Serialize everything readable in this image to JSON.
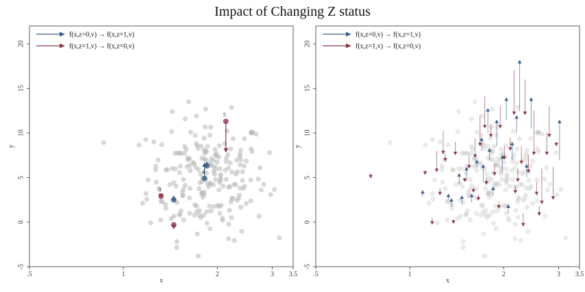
{
  "title": "Impact of Changing Z status",
  "colors": {
    "blue": "#3d5f87",
    "red": "#8b3a48",
    "grey": "#b8b8b8"
  },
  "legend": {
    "blue_label": "f(x,z=0,v) → f(x,z=1,v)",
    "red_label": "f(x,z=1,v) → f(x,z=0,v)"
  },
  "chart_data": [
    {
      "type": "scatter",
      "panel": "left",
      "xlabel": "x",
      "ylabel": "y",
      "xscale": "log",
      "xlim": [
        0.5,
        3.5
      ],
      "ylim": [
        -5,
        22
      ],
      "xticks": [
        {
          "v": 0.5,
          "t": ".5"
        },
        {
          "v": 1,
          "t": "1"
        },
        {
          "v": 2,
          "t": "2"
        },
        {
          "v": 3,
          "t": "3"
        },
        {
          "v": 3.5,
          "t": "3.5"
        }
      ],
      "yticks": [
        {
          "v": -5,
          "t": "-5"
        },
        {
          "v": 0,
          "t": "0"
        },
        {
          "v": 5,
          "t": "5"
        },
        {
          "v": 10,
          "t": "10"
        },
        {
          "v": 15,
          "t": "15"
        },
        {
          "v": 20,
          "t": "20"
        }
      ],
      "legend_position": "top-left",
      "highlight": [
        {
          "label": "3",
          "x": 1.32,
          "y0": 2.9,
          "y1": 2.7,
          "kind": "red"
        },
        {
          "label": "",
          "x": 1.45,
          "y0": 2.5,
          "y1": 3.0,
          "kind": "blue"
        },
        {
          "label": "4",
          "x": 1.82,
          "y0": 4.9,
          "y1": 6.7,
          "kind": "blue"
        },
        {
          "label": "",
          "x": 1.85,
          "y0": 6.3,
          "y1": 6.8,
          "kind": "blue"
        },
        {
          "label": "5",
          "x": 2.13,
          "y0": 11.3,
          "y1": 7.8,
          "kind": "red"
        },
        {
          "label": "",
          "x": 1.45,
          "y0": -0.3,
          "y1": -0.8,
          "kind": "red"
        }
      ]
    },
    {
      "type": "scatter",
      "panel": "right",
      "xlabel": "x",
      "ylabel": "y",
      "xscale": "log",
      "xlim": [
        0.5,
        3.5
      ],
      "ylim": [
        -5,
        22
      ],
      "xticks": [
        {
          "v": 0.5,
          "t": ".5"
        },
        {
          "v": 1,
          "t": "1"
        },
        {
          "v": 2,
          "t": "2"
        },
        {
          "v": 3,
          "t": "3"
        },
        {
          "v": 3.5,
          "t": "3.5"
        }
      ],
      "yticks": [
        {
          "v": -5,
          "t": "-5"
        },
        {
          "v": 0,
          "t": "0"
        },
        {
          "v": 5,
          "t": "5"
        },
        {
          "v": 10,
          "t": "10"
        },
        {
          "v": 15,
          "t": "15"
        },
        {
          "v": 20,
          "t": "20"
        }
      ],
      "legend_position": "top-left",
      "arrows": [
        {
          "x": 0.75,
          "y0": 5.5,
          "y1": 4.9,
          "kind": "red"
        },
        {
          "x": 1.1,
          "y0": 2.9,
          "y1": 3.6,
          "kind": "blue"
        },
        {
          "x": 1.12,
          "y0": 5.8,
          "y1": 5.3,
          "kind": "red"
        },
        {
          "x": 1.18,
          "y0": 0.5,
          "y1": -0.3,
          "kind": "red"
        },
        {
          "x": 1.22,
          "y0": 8.0,
          "y1": 5.6,
          "kind": "red"
        },
        {
          "x": 1.25,
          "y0": 3.8,
          "y1": 3.0,
          "kind": "red"
        },
        {
          "x": 1.28,
          "y0": 10.2,
          "y1": 7.6,
          "kind": "red"
        },
        {
          "x": 1.3,
          "y0": 7.7,
          "y1": 6.8,
          "kind": "red"
        },
        {
          "x": 1.33,
          "y0": 2.5,
          "y1": 3.2,
          "kind": "blue"
        },
        {
          "x": 1.36,
          "y0": 1.7,
          "y1": 2.7,
          "kind": "blue"
        },
        {
          "x": 1.38,
          "y0": 0.3,
          "y1": -0.2,
          "kind": "red"
        },
        {
          "x": 1.4,
          "y0": 9.0,
          "y1": 7.5,
          "kind": "red"
        },
        {
          "x": 1.44,
          "y0": 4.2,
          "y1": 5.5,
          "kind": "blue"
        },
        {
          "x": 1.47,
          "y0": 2.0,
          "y1": 3.0,
          "kind": "blue"
        },
        {
          "x": 1.5,
          "y0": 5.0,
          "y1": 4.5,
          "kind": "red"
        },
        {
          "x": 1.52,
          "y0": 4.6,
          "y1": 6.2,
          "kind": "blue"
        },
        {
          "x": 1.55,
          "y0": 7.5,
          "y1": 6.0,
          "kind": "red"
        },
        {
          "x": 1.58,
          "y0": 2.2,
          "y1": 3.2,
          "kind": "blue"
        },
        {
          "x": 1.6,
          "y0": 4.0,
          "y1": 3.3,
          "kind": "red"
        },
        {
          "x": 1.62,
          "y0": 9.4,
          "y1": 7.2,
          "kind": "red"
        },
        {
          "x": 1.64,
          "y0": 6.1,
          "y1": 7.0,
          "kind": "blue"
        },
        {
          "x": 1.66,
          "y0": 3.1,
          "y1": 2.4,
          "kind": "red"
        },
        {
          "x": 1.68,
          "y0": 12.0,
          "y1": 8.5,
          "kind": "red"
        },
        {
          "x": 1.7,
          "y0": 8.0,
          "y1": 9.5,
          "kind": "blue"
        },
        {
          "x": 1.72,
          "y0": 4.5,
          "y1": 6.5,
          "kind": "blue"
        },
        {
          "x": 1.74,
          "y0": 14.1,
          "y1": 10.5,
          "kind": "red"
        },
        {
          "x": 1.76,
          "y0": 5.0,
          "y1": 4.2,
          "kind": "red"
        },
        {
          "x": 1.78,
          "y0": 10.0,
          "y1": 12.8,
          "kind": "blue"
        },
        {
          "x": 1.8,
          "y0": 7.0,
          "y1": 8.3,
          "kind": "blue"
        },
        {
          "x": 1.82,
          "y0": 11.0,
          "y1": 9.5,
          "kind": "red"
        },
        {
          "x": 1.85,
          "y0": 3.0,
          "y1": 4.0,
          "kind": "blue"
        },
        {
          "x": 1.87,
          "y0": 6.5,
          "y1": 5.2,
          "kind": "red"
        },
        {
          "x": 1.9,
          "y0": 8.5,
          "y1": 11.5,
          "kind": "blue"
        },
        {
          "x": 1.93,
          "y0": 2.2,
          "y1": 1.5,
          "kind": "red"
        },
        {
          "x": 1.95,
          "y0": 13.0,
          "y1": 10.5,
          "kind": "red"
        },
        {
          "x": 1.98,
          "y0": 5.5,
          "y1": 7.5,
          "kind": "blue"
        },
        {
          "x": 2.01,
          "y0": 8.5,
          "y1": 7.0,
          "kind": "red"
        },
        {
          "x": 2.04,
          "y0": 11.5,
          "y1": 14.0,
          "kind": "blue"
        },
        {
          "x": 2.07,
          "y0": 1.0,
          "y1": 2.0,
          "kind": "blue"
        },
        {
          "x": 2.1,
          "y0": 9.5,
          "y1": 8.0,
          "kind": "red"
        },
        {
          "x": 2.13,
          "y0": 7.0,
          "y1": 9.0,
          "kind": "blue"
        },
        {
          "x": 2.16,
          "y0": 17.0,
          "y1": 12.0,
          "kind": "red"
        },
        {
          "x": 2.18,
          "y0": 4.0,
          "y1": 3.2,
          "kind": "red"
        },
        {
          "x": 2.2,
          "y0": 10.0,
          "y1": 12.0,
          "kind": "blue"
        },
        {
          "x": 2.22,
          "y0": 6.0,
          "y1": 4.5,
          "kind": "red"
        },
        {
          "x": 2.25,
          "y0": 12.5,
          "y1": 18.2,
          "kind": "blue"
        },
        {
          "x": 2.28,
          "y0": 8.5,
          "y1": 6.5,
          "kind": "red"
        },
        {
          "x": 2.31,
          "y0": 1.0,
          "y1": -0.5,
          "kind": "red"
        },
        {
          "x": 2.34,
          "y0": 16.0,
          "y1": 12.0,
          "kind": "red"
        },
        {
          "x": 2.37,
          "y0": 5.0,
          "y1": 6.5,
          "kind": "blue"
        },
        {
          "x": 2.4,
          "y0": 7.5,
          "y1": 5.5,
          "kind": "red"
        },
        {
          "x": 2.45,
          "y0": 10.5,
          "y1": 14.0,
          "kind": "blue"
        },
        {
          "x": 2.5,
          "y0": 12.5,
          "y1": 7.5,
          "kind": "red"
        },
        {
          "x": 2.55,
          "y0": 4.5,
          "y1": 3.0,
          "kind": "red"
        },
        {
          "x": 2.6,
          "y0": 1.8,
          "y1": 0.7,
          "kind": "red"
        },
        {
          "x": 2.65,
          "y0": 6.0,
          "y1": 2.0,
          "kind": "red"
        },
        {
          "x": 2.75,
          "y0": 10.0,
          "y1": 7.5,
          "kind": "red"
        },
        {
          "x": 2.8,
          "y0": 13.0,
          "y1": 9.5,
          "kind": "red"
        },
        {
          "x": 2.88,
          "y0": 6.2,
          "y1": 2.5,
          "kind": "red"
        },
        {
          "x": 2.95,
          "y0": 9.0,
          "y1": 8.5,
          "kind": "red"
        },
        {
          "x": 3.02,
          "y0": 7.0,
          "y1": 11.5,
          "kind": "blue"
        }
      ]
    }
  ]
}
